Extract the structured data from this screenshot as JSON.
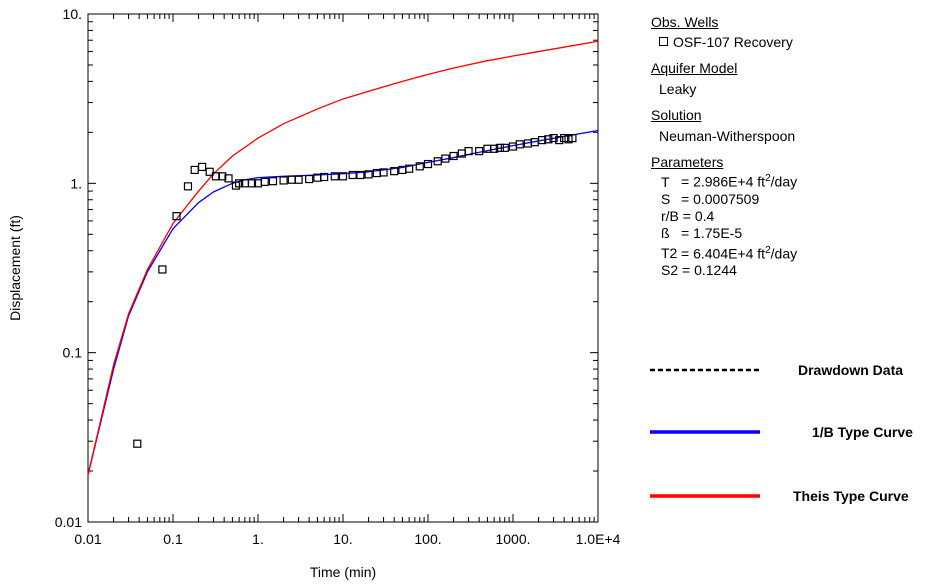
{
  "chart_data": {
    "type": "scatter",
    "xscale": "log",
    "yscale": "log",
    "xlim": [
      0.01,
      10000
    ],
    "ylim": [
      0.01,
      10
    ],
    "xlabel": "Time (min)",
    "ylabel": "Displacement (ft)",
    "xticks": [
      "0.01",
      "0.1",
      "1.",
      "10.",
      "100.",
      "1000.",
      "1.0E+4"
    ],
    "yticks": [
      "0.01",
      "0.1",
      "1.",
      "10."
    ],
    "points": {
      "x": [
        0.038,
        0.075,
        0.11,
        0.15,
        0.18,
        0.22,
        0.27,
        0.32,
        0.38,
        0.45,
        0.55,
        0.6,
        0.7,
        0.85,
        1.0,
        1.2,
        1.5,
        2,
        2.5,
        3,
        4,
        5,
        6,
        8,
        10,
        13,
        16,
        20,
        25,
        30,
        40,
        50,
        60,
        80,
        100,
        130,
        160,
        200,
        250,
        300,
        400,
        500,
        600,
        700,
        800,
        1000,
        1200,
        1500,
        1800,
        2200,
        2600,
        3000,
        3500,
        4000,
        4500,
        5000
      ],
      "y": [
        0.029,
        0.31,
        0.64,
        0.96,
        1.2,
        1.25,
        1.17,
        1.1,
        1.1,
        1.07,
        0.97,
        1.0,
        1.0,
        1.0,
        1.0,
        1.02,
        1.03,
        1.04,
        1.05,
        1.05,
        1.06,
        1.08,
        1.09,
        1.1,
        1.1,
        1.12,
        1.12,
        1.13,
        1.15,
        1.16,
        1.18,
        1.2,
        1.22,
        1.26,
        1.3,
        1.35,
        1.4,
        1.45,
        1.5,
        1.55,
        1.55,
        1.6,
        1.6,
        1.62,
        1.62,
        1.65,
        1.7,
        1.72,
        1.75,
        1.8,
        1.82,
        1.85,
        1.8,
        1.85,
        1.82,
        1.85
      ]
    },
    "curves": [
      {
        "color": "#0000ff",
        "x": [
          0.01,
          0.02,
          0.03,
          0.05,
          0.1,
          0.2,
          0.3,
          0.5,
          0.7,
          1,
          2,
          5,
          10,
          20,
          50,
          100,
          200,
          500,
          1000,
          2000,
          5000,
          10000
        ],
        "y": [
          0.019,
          0.08,
          0.165,
          0.3,
          0.54,
          0.77,
          0.89,
          1.0,
          1.05,
          1.08,
          1.1,
          1.12,
          1.14,
          1.17,
          1.24,
          1.33,
          1.42,
          1.56,
          1.67,
          1.78,
          1.93,
          2.05
        ]
      },
      {
        "color": "#ff0000",
        "x": [
          0.01,
          0.02,
          0.03,
          0.05,
          0.1,
          0.2,
          0.3,
          0.5,
          1,
          2,
          5,
          10,
          20,
          50,
          100,
          200,
          500,
          1000,
          2000,
          5000,
          10000
        ],
        "y": [
          0.019,
          0.085,
          0.17,
          0.31,
          0.58,
          0.9,
          1.14,
          1.45,
          1.85,
          2.25,
          2.75,
          3.15,
          3.5,
          4.0,
          4.4,
          4.8,
          5.3,
          5.65,
          6.0,
          6.5,
          6.9
        ]
      }
    ]
  },
  "panel": {
    "obs_header": "Obs. Wells",
    "obs_well": "OSF-107 Recovery",
    "aquifer_header": "Aquifer Model",
    "aquifer": "Leaky",
    "solution_header": "Solution",
    "solution": "Neuman-Witherspoon",
    "params_header": "Parameters",
    "params": {
      "T_label": "T",
      "T_value": "= 2.986E+4 ft",
      "T_unit": "/day",
      "S_label": "S",
      "S_value": "= 0.0007509",
      "rB": "r/B = 0.4",
      "beta_label": "ß",
      "beta_value": "= 1.75E-5",
      "T2_label": "T2",
      "T2_value": "= 6.404E+4 ft",
      "T2_unit": "/day",
      "S2": "S2 = 0.1244"
    },
    "sq": "2"
  },
  "legend": [
    {
      "label": "Drawdown Data",
      "color": "#000000",
      "style": "dashed"
    },
    {
      "label": "1/B Type Curve",
      "color": "#0000ff",
      "style": "solid"
    },
    {
      "label": "Theis Type Curve",
      "color": "#ff0000",
      "style": "solid"
    }
  ]
}
